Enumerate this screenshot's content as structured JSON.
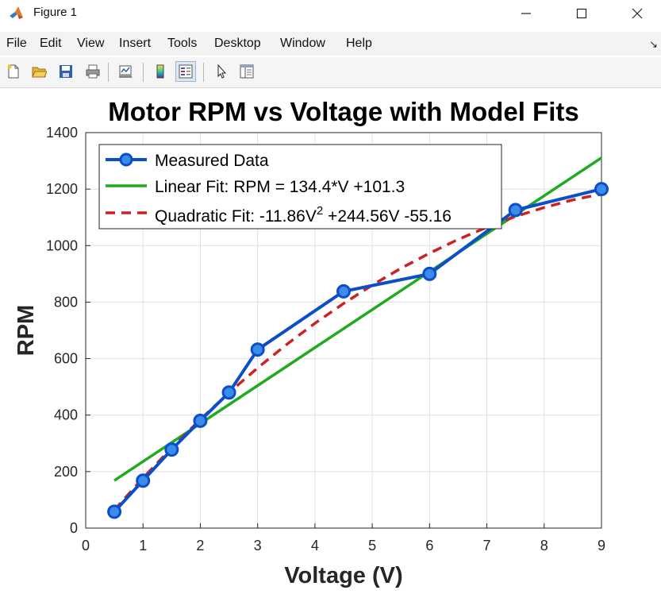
{
  "window": {
    "title": "Figure 1"
  },
  "menu": {
    "items": [
      "File",
      "Edit",
      "View",
      "Insert",
      "Tools",
      "Desktop",
      "Window",
      "Help"
    ]
  },
  "toolbar": {
    "icons": [
      "new-figure-icon",
      "open-file-icon",
      "save-icon",
      "print-icon",
      "link-plot-icon",
      "colorbar-icon",
      "legend-icon",
      "pointer-icon",
      "property-editor-icon"
    ]
  },
  "chart_data": {
    "type": "line",
    "title": "Motor RPM vs Voltage with Model Fits",
    "xlabel": "Voltage (V)",
    "ylabel": "RPM",
    "xlim": [
      0,
      9
    ],
    "ylim": [
      0,
      1400
    ],
    "xticks": [
      0,
      1,
      2,
      3,
      4,
      5,
      6,
      7,
      8,
      9
    ],
    "yticks": [
      0,
      200,
      400,
      600,
      800,
      1000,
      1200,
      1400
    ],
    "grid": true,
    "legend_position": "top-left",
    "series": [
      {
        "name": "Measured Data",
        "style": "line-markers",
        "color": "#0a4fc8",
        "x": [
          0.5,
          1,
          1.5,
          2,
          2.5,
          3,
          4.5,
          6,
          7.5,
          9
        ],
        "y": [
          58,
          168,
          278,
          380,
          480,
          632,
          838,
          900,
          1126,
          1200
        ]
      },
      {
        "name": "Linear Fit: RPM = 134.4*V +101.3",
        "style": "solid",
        "color": "#1faa1f",
        "x": [
          0.5,
          9
        ],
        "y": [
          168.5,
          1310.9
        ]
      },
      {
        "name_parts": [
          "Quadratic Fit: -11.86V",
          "2",
          " +244.56V -55.16"
        ],
        "style": "dashed",
        "color": "#cc2222",
        "x": [
          0.5,
          1,
          1.5,
          2,
          2.5,
          3,
          3.5,
          4,
          4.5,
          5,
          5.5,
          6,
          6.5,
          7,
          7.5,
          8,
          8.5,
          9
        ],
        "y": [
          64.1,
          177.5,
          284.0,
          384.5,
          479.2,
          567.0,
          649.0,
          725.0,
          795.0,
          860.0,
          919.5,
          973.0,
          1022.0,
          1065.0,
          1103.0,
          1135.0,
          1162.0,
          1183.0
        ]
      }
    ]
  }
}
